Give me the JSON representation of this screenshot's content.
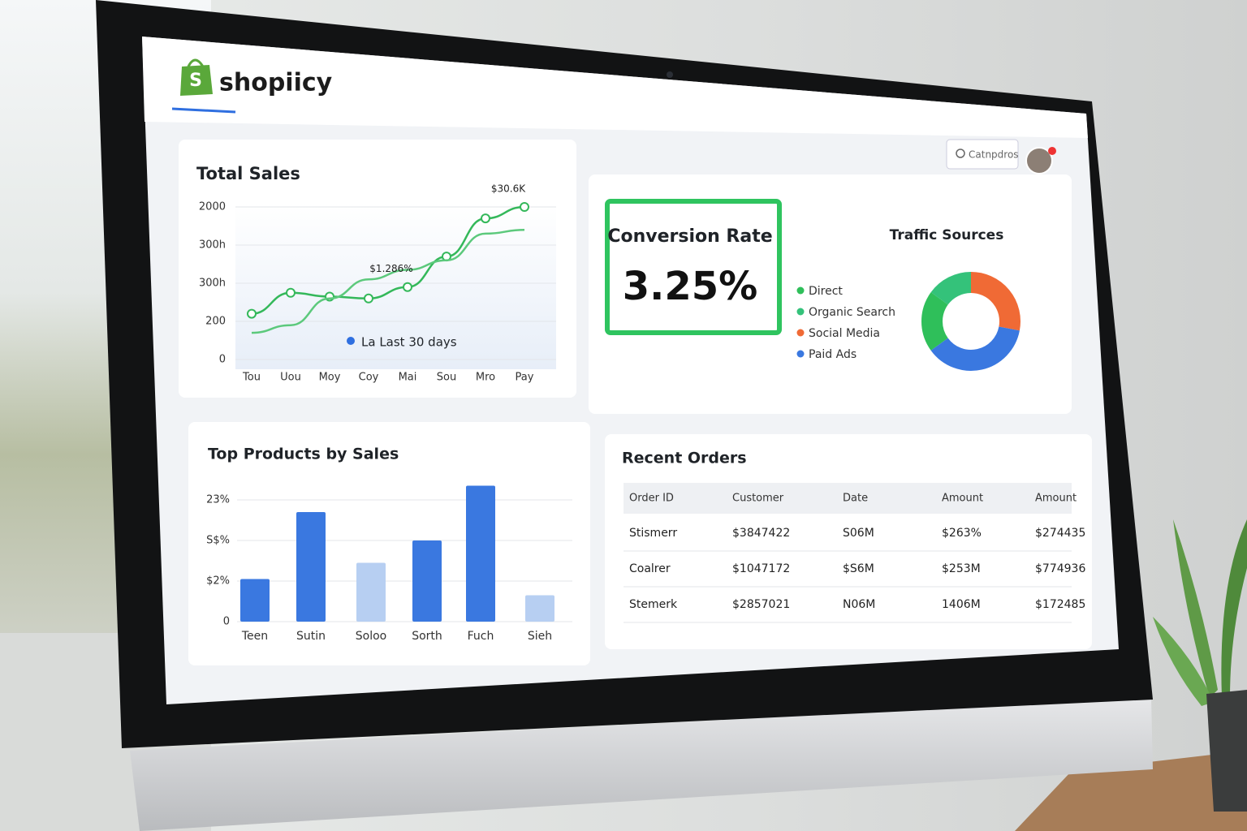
{
  "header": {
    "brand": "shopiicy",
    "search": "Catnpdros"
  },
  "conversion": {
    "title": "Conversion Rate",
    "value": "3.25%"
  },
  "chart_data": [
    {
      "type": "line",
      "title": "Total Sales",
      "categories": [
        "Tou",
        "Uou",
        "Moy",
        "Coy",
        "Mai",
        "Sou",
        "Mro",
        "Pay"
      ],
      "ylim": [
        0,
        4.3
      ],
      "yticks": [
        0,
        {
          "value": 1,
          "label": "200"
        },
        {
          "value": 2,
          "label": "300h"
        },
        {
          "value": 3,
          "label": "300h"
        },
        {
          "value": 4,
          "label": "2000"
        }
      ],
      "series": [
        {
          "color": "#34b85a",
          "values": [
            1.2,
            1.75,
            1.65,
            1.6,
            1.9,
            2.7,
            3.7,
            4.0
          ]
        },
        {
          "color": "#5cc97c",
          "values": [
            0.7,
            0.9,
            1.6,
            2.1,
            2.35,
            2.6,
            3.3,
            3.4
          ]
        }
      ],
      "legend": "La Last 30 days",
      "legend_color": "#2f6fe0",
      "annotations": [
        "$1.286%",
        "$30.6K"
      ],
      "grid": true
    },
    {
      "type": "pie",
      "title": "Traffic Sources",
      "categories": [
        "Direct",
        "Organic Search",
        "Social Media",
        "Paid Ads"
      ],
      "values": [
        20,
        15,
        28,
        37
      ],
      "colors": [
        "#2fbf5a",
        "#34c27a",
        "#f06a35",
        "#3a78e0"
      ]
    },
    {
      "type": "bar",
      "title": "Top Products by Sales",
      "categories": [
        "Teen",
        "Sutin",
        "Soloo",
        "Sorth",
        "Fuch",
        "Sieh"
      ],
      "values": [
        1.05,
        2.7,
        1.45,
        2.0,
        3.35,
        0.65
      ],
      "colors": [
        "#3a78e0",
        "#3a78e0",
        "#b7cff2",
        "#3a78e0",
        "#3a78e0",
        "#b7cff2"
      ],
      "ylim": [
        0,
        3.6
      ],
      "yticks": [
        0,
        {
          "value": 1,
          "label": "$2%"
        },
        {
          "value": 2,
          "label": "S$%"
        },
        {
          "value": 3,
          "label": "23%"
        }
      ],
      "grid": true
    }
  ],
  "orders": {
    "title": "Recent Orders",
    "columns": [
      "Order ID",
      "Customer",
      "Date",
      "Amount",
      "Amount"
    ],
    "rows": [
      [
        "Stismerr",
        "$3847422",
        "S06M",
        "$263%",
        "$274435"
      ],
      [
        "Coalrer",
        "$1047172",
        "$S6M",
        "$253M",
        "$774936"
      ],
      [
        "Stemerk",
        "$2857021",
        "N06M",
        "1406M",
        "$172485"
      ]
    ]
  }
}
